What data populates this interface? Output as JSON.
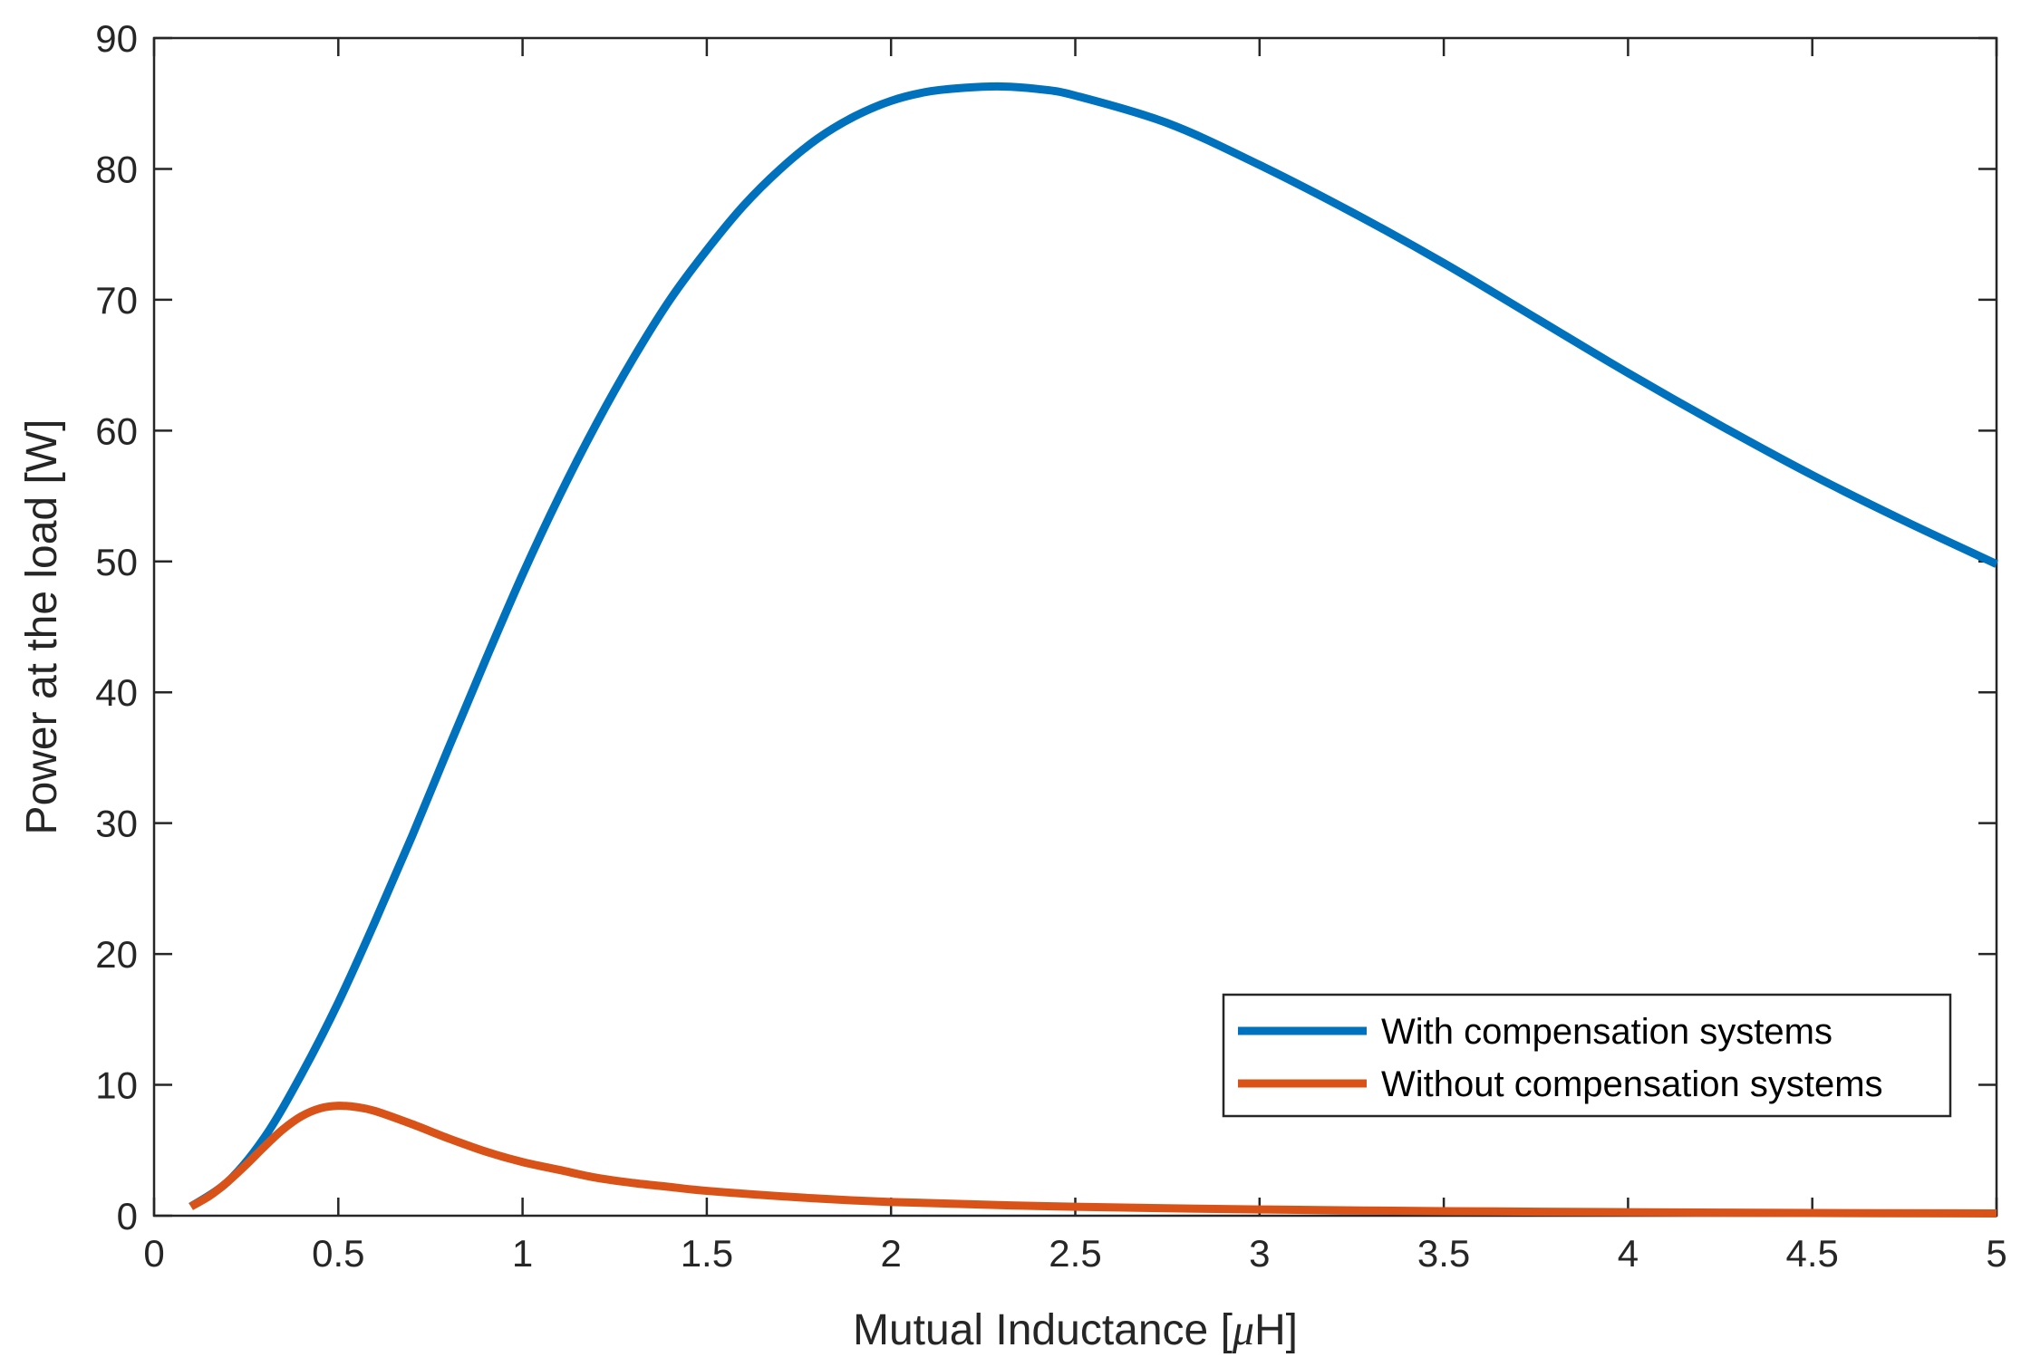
{
  "chart_data": {
    "type": "line",
    "title": "",
    "xlabel_main": "Mutual Inductance [",
    "xlabel_mu": "μ",
    "xlabel_rest": "H]",
    "ylabel": "Power at the load [W]",
    "xlim": [
      0,
      5
    ],
    "ylim": [
      0,
      90
    ],
    "x_ticks": [
      0,
      0.5,
      1,
      1.5,
      2,
      2.5,
      3,
      3.5,
      4,
      4.5,
      5
    ],
    "x_tick_labels": [
      "0",
      "0.5",
      "1",
      "1.5",
      "2",
      "2.5",
      "3",
      "3.5",
      "4",
      "4.5",
      "5"
    ],
    "y_ticks": [
      0,
      10,
      20,
      30,
      40,
      50,
      60,
      70,
      80,
      90
    ],
    "y_tick_labels": [
      "0",
      "10",
      "20",
      "30",
      "40",
      "50",
      "60",
      "70",
      "80",
      "90"
    ],
    "grid": false,
    "legend_position": "bottom-right",
    "series": [
      {
        "name": "With compensation systems",
        "color": "#0072BD",
        "x": [
          0.1,
          0.2,
          0.3,
          0.4,
          0.5,
          0.6,
          0.7,
          0.8,
          0.9,
          1.0,
          1.1,
          1.2,
          1.3,
          1.4,
          1.5,
          1.6,
          1.7,
          1.8,
          1.9,
          2.0,
          2.1,
          2.2,
          2.3,
          2.4,
          2.5,
          2.75,
          3.0,
          3.25,
          3.5,
          3.75,
          4.0,
          4.25,
          4.5,
          4.75,
          5.0
        ],
        "y": [
          0.7,
          2.6,
          6.0,
          10.8,
          16.3,
          22.5,
          29.0,
          35.8,
          42.5,
          49.0,
          55.0,
          60.5,
          65.5,
          70.0,
          73.8,
          77.2,
          80.0,
          82.3,
          84.0,
          85.2,
          85.9,
          86.2,
          86.3,
          86.1,
          85.6,
          83.5,
          80.3,
          76.7,
          72.8,
          68.6,
          64.4,
          60.4,
          56.6,
          53.1,
          49.8
        ]
      },
      {
        "name": "Without compensation systems",
        "color": "#D95319",
        "x": [
          0.1,
          0.15,
          0.2,
          0.25,
          0.3,
          0.35,
          0.4,
          0.45,
          0.5,
          0.55,
          0.6,
          0.7,
          0.8,
          0.9,
          1.0,
          1.1,
          1.2,
          1.3,
          1.4,
          1.5,
          1.75,
          2.0,
          2.5,
          3.0,
          3.5,
          4.0,
          4.5,
          5.0
        ],
        "y": [
          0.7,
          1.5,
          2.6,
          3.9,
          5.3,
          6.6,
          7.6,
          8.2,
          8.4,
          8.3,
          8.0,
          7.0,
          5.9,
          4.9,
          4.1,
          3.5,
          2.9,
          2.5,
          2.2,
          1.9,
          1.4,
          1.05,
          0.68,
          0.48,
          0.35,
          0.27,
          0.21,
          0.17
        ]
      }
    ]
  }
}
